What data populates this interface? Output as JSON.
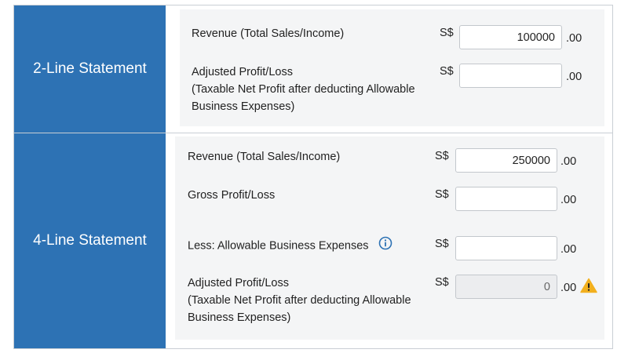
{
  "two_line": {
    "title": "2-Line Statement",
    "revenue": {
      "label": "Revenue (Total Sales/Income)",
      "currency": "S$",
      "value": "100000",
      "decimals": ".00"
    },
    "adjusted": {
      "label_line1": "Adjusted Profit/Loss",
      "label_line2": "(Taxable Net Profit after deducting Allowable",
      "label_line3": "Business Expenses)",
      "currency": "S$",
      "value": "",
      "decimals": ".00"
    }
  },
  "four_line": {
    "title": "4-Line Statement",
    "revenue": {
      "label": "Revenue (Total Sales/Income)",
      "currency": "S$",
      "value": "250000",
      "decimals": ".00"
    },
    "gross": {
      "label": "Gross Profit/Loss",
      "currency": "S$",
      "value": "",
      "decimals": ".00"
    },
    "expenses": {
      "label": "Less: Allowable Business Expenses",
      "currency": "S$",
      "value": "",
      "decimals": ".00",
      "icon": "info-icon"
    },
    "adjusted": {
      "label_line1": "Adjusted Profit/Loss",
      "label_line2": "(Taxable Net Profit after deducting Allowable",
      "label_line3": "Business Expenses)",
      "currency": "S$",
      "value": "0",
      "decimals": ".00",
      "icon": "warning-icon"
    }
  },
  "colors": {
    "header_blue": "#2d72b4",
    "panel_bg": "#f4f5f6",
    "info_blue": "#2d72b4",
    "warning_yellow": "#f2b01e"
  }
}
